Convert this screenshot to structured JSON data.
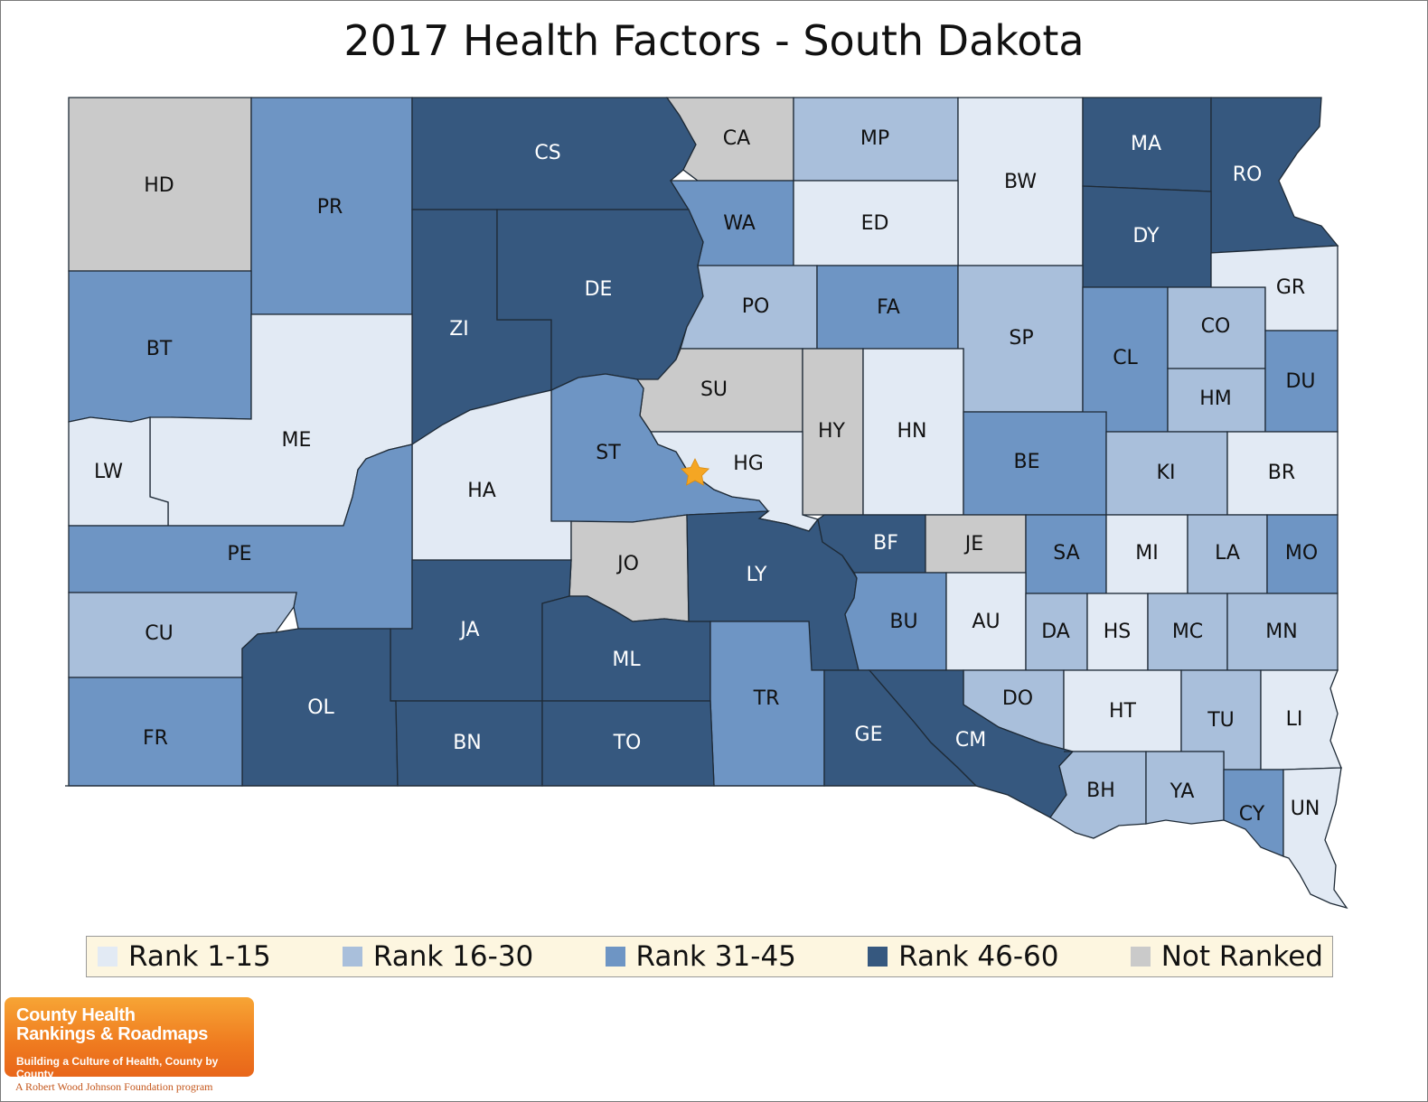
{
  "title": "2017 Health Factors - South Dakota",
  "colors": {
    "rank_1_15": "#e2eaf4",
    "rank_16_30": "#a9bfdb",
    "rank_31_45": "#6e95c4",
    "rank_46_60": "#36587f",
    "not_ranked": "#cacaca",
    "marker": "#f5a623"
  },
  "legend": [
    {
      "key": "rank_1_15",
      "label": "Rank 1-15"
    },
    {
      "key": "rank_16_30",
      "label": "Rank 16-30"
    },
    {
      "key": "rank_31_45",
      "label": "Rank 31-45"
    },
    {
      "key": "rank_46_60",
      "label": "Rank 46-60"
    },
    {
      "key": "not_ranked",
      "label": "Not Ranked"
    }
  ],
  "counties": [
    {
      "abbr": "HD",
      "rank_group": "not_ranked"
    },
    {
      "abbr": "PR",
      "rank_group": "rank_31_45"
    },
    {
      "abbr": "CS",
      "rank_group": "rank_46_60"
    },
    {
      "abbr": "CA",
      "rank_group": "not_ranked"
    },
    {
      "abbr": "MP",
      "rank_group": "rank_16_30"
    },
    {
      "abbr": "BW",
      "rank_group": "rank_1_15"
    },
    {
      "abbr": "MA",
      "rank_group": "rank_46_60"
    },
    {
      "abbr": "RO",
      "rank_group": "rank_46_60"
    },
    {
      "abbr": "WA",
      "rank_group": "rank_31_45"
    },
    {
      "abbr": "ED",
      "rank_group": "rank_1_15"
    },
    {
      "abbr": "DY",
      "rank_group": "rank_46_60"
    },
    {
      "abbr": "BT",
      "rank_group": "rank_31_45"
    },
    {
      "abbr": "ZI",
      "rank_group": "rank_46_60"
    },
    {
      "abbr": "DE",
      "rank_group": "rank_46_60"
    },
    {
      "abbr": "PO",
      "rank_group": "rank_16_30"
    },
    {
      "abbr": "FA",
      "rank_group": "rank_31_45"
    },
    {
      "abbr": "SP",
      "rank_group": "rank_16_30"
    },
    {
      "abbr": "CL",
      "rank_group": "rank_31_45"
    },
    {
      "abbr": "CO",
      "rank_group": "rank_16_30"
    },
    {
      "abbr": "GR",
      "rank_group": "rank_1_15"
    },
    {
      "abbr": "ME",
      "rank_group": "rank_1_15"
    },
    {
      "abbr": "LW",
      "rank_group": "rank_1_15"
    },
    {
      "abbr": "SU",
      "rank_group": "not_ranked"
    },
    {
      "abbr": "HY",
      "rank_group": "not_ranked"
    },
    {
      "abbr": "HN",
      "rank_group": "rank_1_15"
    },
    {
      "abbr": "HM",
      "rank_group": "rank_16_30"
    },
    {
      "abbr": "DU",
      "rank_group": "rank_31_45"
    },
    {
      "abbr": "ST",
      "rank_group": "rank_31_45"
    },
    {
      "abbr": "HG",
      "rank_group": "rank_1_15"
    },
    {
      "abbr": "HA",
      "rank_group": "rank_1_15"
    },
    {
      "abbr": "BE",
      "rank_group": "rank_31_45"
    },
    {
      "abbr": "KI",
      "rank_group": "rank_16_30"
    },
    {
      "abbr": "BR",
      "rank_group": "rank_1_15"
    },
    {
      "abbr": "PE",
      "rank_group": "rank_31_45"
    },
    {
      "abbr": "JO",
      "rank_group": "not_ranked"
    },
    {
      "abbr": "LY",
      "rank_group": "rank_46_60"
    },
    {
      "abbr": "BF",
      "rank_group": "rank_46_60"
    },
    {
      "abbr": "JE",
      "rank_group": "not_ranked"
    },
    {
      "abbr": "SA",
      "rank_group": "rank_31_45"
    },
    {
      "abbr": "MI",
      "rank_group": "rank_1_15"
    },
    {
      "abbr": "LA",
      "rank_group": "rank_16_30"
    },
    {
      "abbr": "MO",
      "rank_group": "rank_31_45"
    },
    {
      "abbr": "CU",
      "rank_group": "rank_16_30"
    },
    {
      "abbr": "JA",
      "rank_group": "rank_46_60"
    },
    {
      "abbr": "ML",
      "rank_group": "rank_46_60"
    },
    {
      "abbr": "BU",
      "rank_group": "rank_31_45"
    },
    {
      "abbr": "AU",
      "rank_group": "rank_1_15"
    },
    {
      "abbr": "DA",
      "rank_group": "rank_16_30"
    },
    {
      "abbr": "HS",
      "rank_group": "rank_1_15"
    },
    {
      "abbr": "MC",
      "rank_group": "rank_16_30"
    },
    {
      "abbr": "MN",
      "rank_group": "rank_16_30"
    },
    {
      "abbr": "OL",
      "rank_group": "rank_46_60"
    },
    {
      "abbr": "FR",
      "rank_group": "rank_31_45"
    },
    {
      "abbr": "TR",
      "rank_group": "rank_31_45"
    },
    {
      "abbr": "DO",
      "rank_group": "rank_16_30"
    },
    {
      "abbr": "HT",
      "rank_group": "rank_1_15"
    },
    {
      "abbr": "TU",
      "rank_group": "rank_16_30"
    },
    {
      "abbr": "LI",
      "rank_group": "rank_1_15"
    },
    {
      "abbr": "BN",
      "rank_group": "rank_46_60"
    },
    {
      "abbr": "TO",
      "rank_group": "rank_46_60"
    },
    {
      "abbr": "GE",
      "rank_group": "rank_46_60"
    },
    {
      "abbr": "CM",
      "rank_group": "rank_46_60"
    },
    {
      "abbr": "BH",
      "rank_group": "rank_16_30"
    },
    {
      "abbr": "YA",
      "rank_group": "rank_16_30"
    },
    {
      "abbr": "CY",
      "rank_group": "rank_31_45"
    },
    {
      "abbr": "UN",
      "rank_group": "rank_1_15"
    }
  ],
  "marker_icon": "star-icon",
  "logo": {
    "line1": "County Health",
    "line2": "Rankings & Roadmaps",
    "line3": "Building a Culture of Health, County by County",
    "tagline": "A Robert Wood Johnson Foundation program"
  }
}
